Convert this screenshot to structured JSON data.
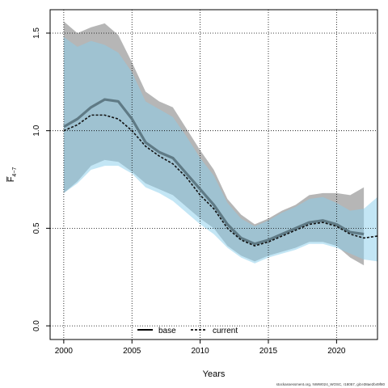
{
  "chart_data": {
    "type": "line",
    "title": "",
    "xlabel": "Years",
    "ylabel": "F̅ 4-7",
    "xlim": [
      1999,
      2023
    ],
    "ylim": [
      -0.07,
      1.62
    ],
    "xticks": [
      2000,
      2005,
      2010,
      2015,
      2020
    ],
    "yticks": [
      0.0,
      0.5,
      1.0,
      1.5
    ],
    "xtick_labels": [
      "2000",
      "2005",
      "2010",
      "2015",
      "2020"
    ],
    "ytick_labels": [
      "0.0",
      "0.5",
      "1.0",
      "1.5"
    ],
    "grid": true,
    "legend_position": "bottom-center",
    "series": [
      {
        "name": "base",
        "color": "#5f7a85",
        "band_color": "#a9a9a9",
        "x": [
          2000,
          2001,
          2002,
          2003,
          2004,
          2005,
          2006,
          2007,
          2008,
          2009,
          2010,
          2011,
          2012,
          2013,
          2014,
          2015,
          2016,
          2017,
          2018,
          2019,
          2020,
          2021,
          2022
        ],
        "y": [
          1.02,
          1.06,
          1.12,
          1.16,
          1.15,
          1.06,
          0.94,
          0.89,
          0.86,
          0.78,
          0.7,
          0.62,
          0.52,
          0.45,
          0.42,
          0.44,
          0.47,
          0.5,
          0.53,
          0.54,
          0.52,
          0.48,
          0.47
        ],
        "upper": [
          1.56,
          1.5,
          1.53,
          1.55,
          1.49,
          1.35,
          1.2,
          1.15,
          1.12,
          1.01,
          0.9,
          0.8,
          0.65,
          0.57,
          0.52,
          0.55,
          0.59,
          0.62,
          0.67,
          0.68,
          0.68,
          0.67,
          0.71
        ],
        "lower": [
          0.68,
          0.74,
          0.82,
          0.85,
          0.84,
          0.79,
          0.73,
          0.7,
          0.67,
          0.61,
          0.55,
          0.5,
          0.41,
          0.36,
          0.33,
          0.36,
          0.38,
          0.4,
          0.43,
          0.43,
          0.41,
          0.35,
          0.31
        ]
      },
      {
        "name": "current",
        "color": "#111111",
        "band_color": "#87ceeb",
        "x": [
          2000,
          2001,
          2002,
          2003,
          2004,
          2005,
          2006,
          2007,
          2008,
          2009,
          2010,
          2011,
          2012,
          2013,
          2014,
          2015,
          2016,
          2017,
          2018,
          2019,
          2020,
          2021,
          2022,
          2023
        ],
        "y": [
          1.0,
          1.03,
          1.08,
          1.08,
          1.06,
          1.0,
          0.92,
          0.87,
          0.83,
          0.76,
          0.67,
          0.6,
          0.5,
          0.44,
          0.41,
          0.43,
          0.46,
          0.49,
          0.52,
          0.53,
          0.51,
          0.47,
          0.45,
          0.46
        ],
        "upper": [
          1.48,
          1.43,
          1.46,
          1.44,
          1.4,
          1.3,
          1.15,
          1.11,
          1.07,
          0.97,
          0.86,
          0.77,
          0.63,
          0.55,
          0.51,
          0.54,
          0.58,
          0.61,
          0.65,
          0.66,
          0.63,
          0.59,
          0.6,
          0.66
        ],
        "lower": [
          0.68,
          0.73,
          0.8,
          0.82,
          0.82,
          0.78,
          0.71,
          0.68,
          0.64,
          0.58,
          0.52,
          0.47,
          0.4,
          0.35,
          0.32,
          0.35,
          0.37,
          0.39,
          0.42,
          0.42,
          0.4,
          0.37,
          0.34,
          0.33
        ]
      }
    ],
    "footer_note": "stockassessment.org, NWW024_WOSC, r18057, git:e38ae2b49f80"
  }
}
